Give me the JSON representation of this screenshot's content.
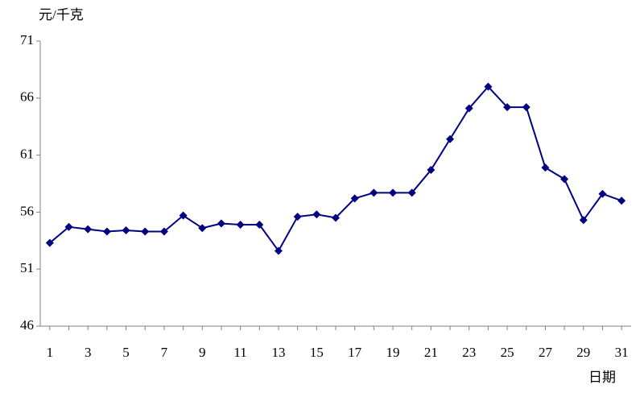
{
  "chart_data": {
    "type": "line",
    "y_label": "元/千克",
    "x_label": "日期",
    "x": [
      1,
      2,
      3,
      4,
      5,
      6,
      7,
      8,
      9,
      10,
      11,
      12,
      13,
      14,
      15,
      16,
      17,
      18,
      19,
      20,
      21,
      22,
      23,
      24,
      25,
      26,
      27,
      28,
      29,
      30,
      31
    ],
    "series": [
      {
        "color": "#000080",
        "values": [
          53.3,
          54.7,
          54.5,
          54.3,
          54.4,
          54.3,
          54.3,
          55.7,
          54.6,
          55.0,
          54.9,
          54.9,
          52.6,
          55.6,
          55.8,
          55.5,
          57.2,
          57.7,
          57.7,
          57.7,
          59.7,
          62.4,
          65.1,
          67.0,
          65.2,
          65.2,
          59.9,
          58.9,
          55.3,
          57.6,
          57.0
        ]
      }
    ],
    "xlim": [
      0.5,
      31.5
    ],
    "xticks": [
      1,
      3,
      5,
      7,
      9,
      11,
      13,
      15,
      17,
      19,
      21,
      23,
      25,
      27,
      29,
      31
    ],
    "ylim": [
      46,
      71
    ],
    "yticks": [
      46,
      51,
      56,
      61,
      66,
      71
    ],
    "grid": false
  }
}
